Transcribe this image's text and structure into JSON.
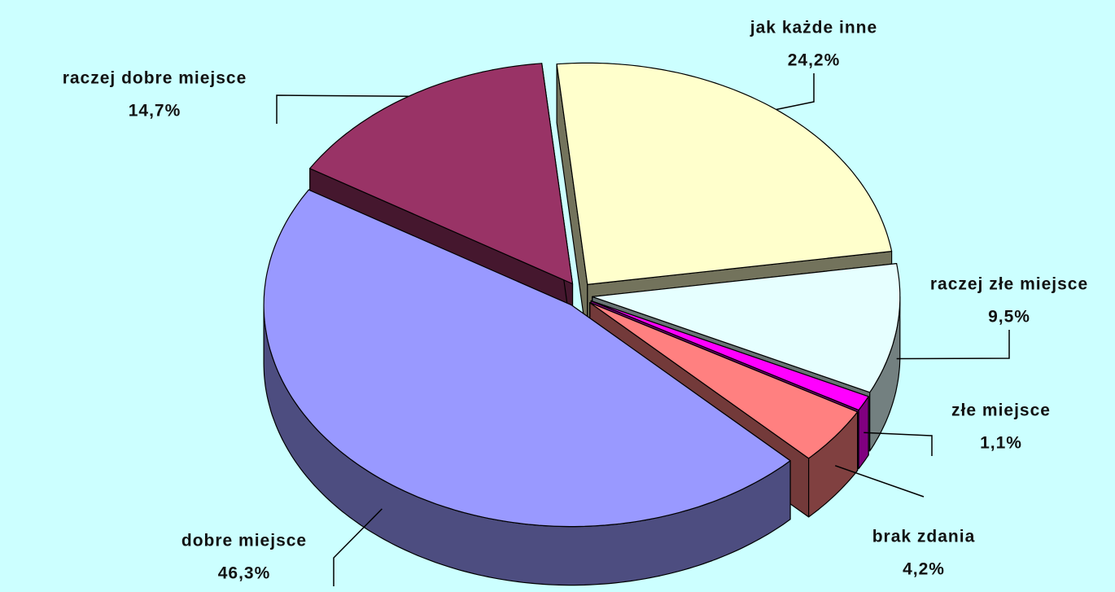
{
  "chart_data": {
    "type": "pie",
    "categories": [
      "jak każde inne",
      "raczej złe miejsce",
      "złe miejsce",
      "brak zdania",
      "dobre miejsce",
      "raczej dobre miejsce"
    ],
    "values": [
      24.2,
      9.5,
      1.1,
      4.2,
      46.3,
      14.7
    ],
    "value_labels": [
      "24,2%",
      "9,5%",
      "1,1%",
      "4,2%",
      "46,3%",
      "14,7%"
    ],
    "colors": [
      "#ffffcc",
      "#e6ffff",
      "#ff00ff",
      "#ff8080",
      "#9999ff",
      "#993366"
    ]
  }
}
